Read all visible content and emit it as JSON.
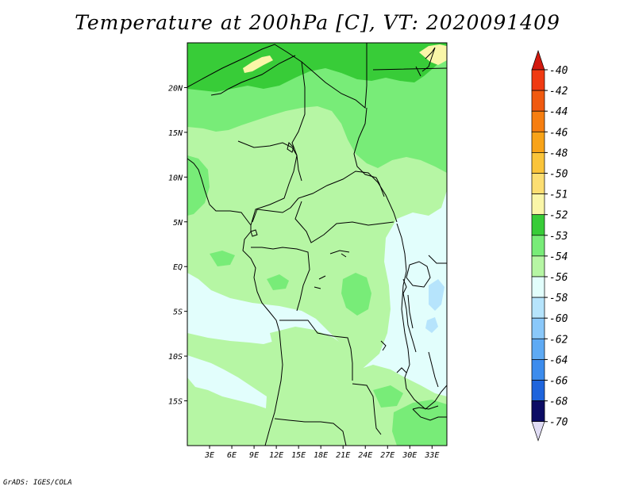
{
  "title": "Temperature at 200hPa [C], VT: 2020091409",
  "credit": "GrADS: IGES/COLA",
  "map": {
    "lon_range": [
      0,
      35
    ],
    "lat_range": [
      -20,
      25
    ],
    "lat_ticks": [
      {
        "value": 20,
        "label": "20N"
      },
      {
        "value": 15,
        "label": "15N"
      },
      {
        "value": 10,
        "label": "10N"
      },
      {
        "value": 5,
        "label": "5N"
      },
      {
        "value": 0,
        "label": "EQ"
      },
      {
        "value": -5,
        "label": "5S"
      },
      {
        "value": -10,
        "label": "10S"
      },
      {
        "value": -15,
        "label": "15S"
      }
    ],
    "lon_ticks": [
      {
        "value": 3,
        "label": "3E"
      },
      {
        "value": 6,
        "label": "6E"
      },
      {
        "value": 9,
        "label": "9E"
      },
      {
        "value": 12,
        "label": "12E"
      },
      {
        "value": 15,
        "label": "15E"
      },
      {
        "value": 18,
        "label": "18E"
      },
      {
        "value": 21,
        "label": "21E"
      },
      {
        "value": 24,
        "label": "24E"
      },
      {
        "value": 27,
        "label": "27E"
      },
      {
        "value": 30,
        "label": "30E"
      },
      {
        "value": 33,
        "label": "33E"
      }
    ]
  },
  "colorbar": {
    "levels": [
      {
        "label": "-40",
        "color": "#f03a12"
      },
      {
        "label": "-42",
        "color": "#f05a10"
      },
      {
        "label": "-44",
        "color": "#f67e10"
      },
      {
        "label": "-46",
        "color": "#f8a318"
      },
      {
        "label": "-48",
        "color": "#fac43a"
      },
      {
        "label": "-50",
        "color": "#fcde72"
      },
      {
        "label": "-51",
        "color": "#faf6a8"
      },
      {
        "label": "-52",
        "color": "#38cc38"
      },
      {
        "label": "-53",
        "color": "#78ec78"
      },
      {
        "label": "-54",
        "color": "#b6f6a4"
      },
      {
        "label": "-56",
        "color": "#e2fefc"
      },
      {
        "label": "-58",
        "color": "#b6e4fc"
      },
      {
        "label": "-60",
        "color": "#8ac8fa"
      },
      {
        "label": "-62",
        "color": "#5eaaf4"
      },
      {
        "label": "-64",
        "color": "#3c8ced"
      },
      {
        "label": "-66",
        "color": "#1e64dc"
      },
      {
        "label": "-68",
        "color": "#1444b4"
      },
      {
        "label": "-70",
        "color": "#0a288c"
      }
    ],
    "top_color": "#d2190e",
    "bottom_color": "#0c0c64",
    "end_cap_color": "#e0dcf4"
  }
}
